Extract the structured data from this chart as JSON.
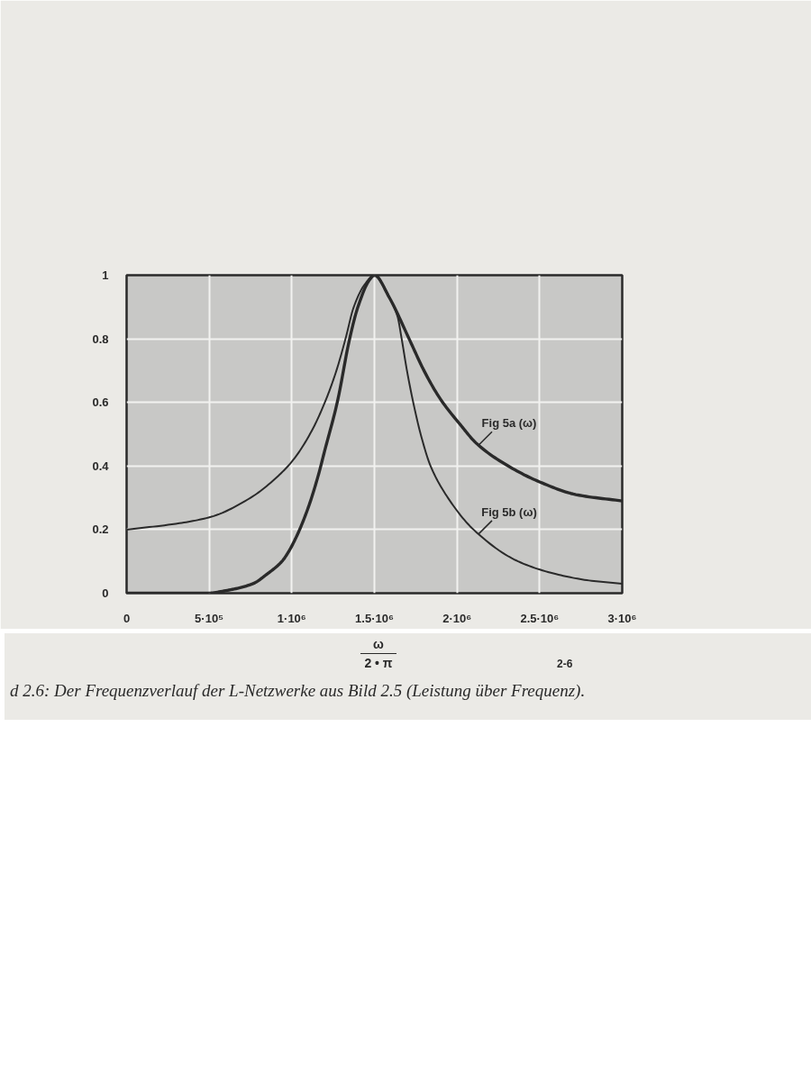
{
  "chart_data": {
    "type": "line",
    "xlabel": "ω\n2 • π",
    "annotations": [
      "2-6",
      "d 2.6: Der Frequenzverlauf der L-Netzwerke aus Bild 2.5 (Leistung über Frequenz)."
    ],
    "xlim": [
      0,
      3000000
    ],
    "ylim": [
      0,
      1
    ],
    "xticks": [
      0,
      {
        "value": 500000,
        "label": "5·10⁵"
      },
      {
        "value": 1000000,
        "label": "1·10⁶"
      },
      {
        "value": 1500000,
        "label": "1.5·10⁶"
      },
      {
        "value": 2000000,
        "label": "2·10⁶"
      },
      {
        "value": 2500000,
        "label": "2.5·10⁶"
      },
      {
        "value": 3000000,
        "label": "3·10⁶"
      }
    ],
    "yticks": [
      0,
      0.2,
      0.4,
      0.6,
      0.8,
      1
    ],
    "grid": true,
    "series": [
      {
        "name": "Fig 5a (ω)",
        "color": "#2a2a2a",
        "x": [
          0,
          250000,
          480000,
          620000,
          765000,
          850000,
          940000,
          980000,
          1030000,
          1100000,
          1160000,
          1200000,
          1275000,
          1350000,
          1400000,
          1470000,
          1500000,
          1590000,
          1710000,
          1800000,
          1900000,
          2020000,
          2120000,
          2310000,
          2500000,
          2720000,
          3000000
        ],
        "values": [
          0,
          0,
          0,
          0.01,
          0.03,
          0.06,
          0.1,
          0.13,
          0.18,
          0.27,
          0.37,
          0.45,
          0.6,
          0.8,
          0.9,
          0.985,
          1.0,
          0.93,
          0.8,
          0.7,
          0.61,
          0.53,
          0.47,
          0.4,
          0.35,
          0.31,
          0.29
        ]
      },
      {
        "name": "Fig 5b (ω)",
        "color": "#2a2a2a",
        "x": [
          0,
          320000,
          510000,
          750000,
          920000,
          1010000,
          1120000,
          1200000,
          1270000,
          1325000,
          1375000,
          1440000,
          1500000,
          1550000,
          1600000,
          1640000,
          1665000,
          1697000,
          1735000,
          1780000,
          1840000,
          1945000,
          2100000,
          2370000,
          2600000,
          2800000,
          3000000
        ],
        "values": [
          0.2,
          0.22,
          0.24,
          0.3,
          0.37,
          0.42,
          0.51,
          0.6,
          0.7,
          0.8,
          0.9,
          0.97,
          1.0,
          0.97,
          0.92,
          0.87,
          0.8,
          0.7,
          0.6,
          0.5,
          0.4,
          0.3,
          0.2,
          0.1,
          0.06,
          0.04,
          0.03
        ]
      }
    ]
  }
}
